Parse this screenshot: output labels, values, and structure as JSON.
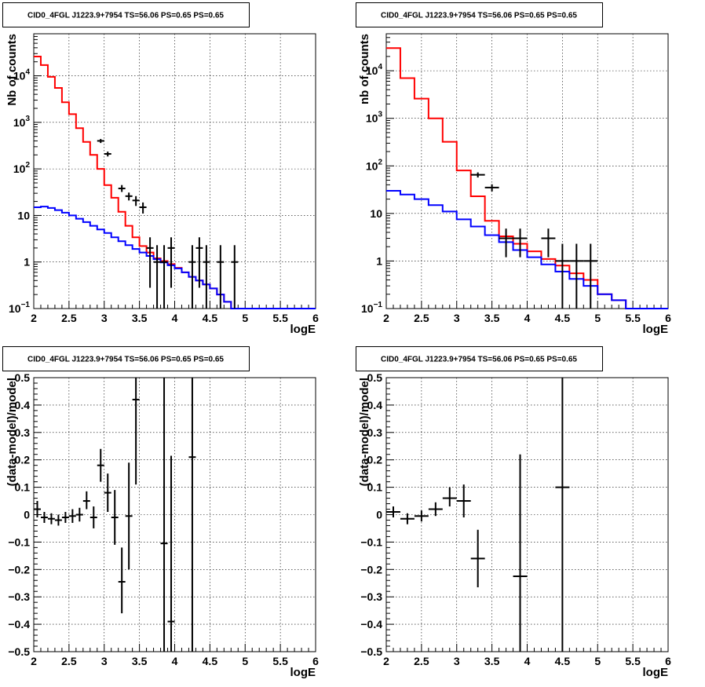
{
  "chart_data": [
    {
      "type": "line",
      "title": "CID0_4FGL J1223.9+7954 TS=56.06 PS=0.65 PS=0.65",
      "xlabel": "logE",
      "ylabel": "Nb of counts",
      "xlim": [
        2,
        6
      ],
      "ylim": [
        0.1,
        80000
      ],
      "yscale": "log",
      "grid": true,
      "xticks": [
        "2",
        "2.5",
        "3",
        "3.5",
        "4",
        "4.5",
        "5",
        "5.5",
        "6"
      ],
      "yticks": [
        {
          "v": 0.1,
          "base": "10",
          "exp": "−1"
        },
        {
          "v": 1,
          "label": "1"
        },
        {
          "v": 10,
          "label": "10"
        },
        {
          "v": 100,
          "base": "10",
          "exp": "2"
        },
        {
          "v": 1000,
          "base": "10",
          "exp": "3"
        },
        {
          "v": 10000,
          "base": "10",
          "exp": "4"
        }
      ],
      "bin_edges": [
        2.0,
        2.1,
        2.2,
        2.3,
        2.4,
        2.5,
        2.6,
        2.7,
        2.8,
        2.9,
        3.0,
        3.1,
        3.2,
        3.3,
        3.4,
        3.5,
        3.6,
        3.7,
        3.8,
        3.9,
        4.0,
        4.1,
        4.2,
        4.3,
        4.4,
        4.5,
        4.6,
        4.7,
        4.8,
        4.9,
        5.0,
        5.1,
        5.2,
        5.3,
        5.4,
        5.5,
        5.6,
        5.7,
        5.8,
        5.9,
        6.0
      ],
      "series": [
        {
          "color": "#ff0000",
          "style": "step",
          "values": [
            26000,
            17000,
            9500,
            5500,
            2700,
            1500,
            750,
            380,
            200,
            100,
            45,
            24,
            12,
            6.0,
            3.4,
            2.2,
            1.6,
            1.2,
            1.05,
            0.9,
            0.75,
            0.6,
            0.48,
            0.4,
            0.33,
            0.27,
            0.2,
            0.14,
            0.1,
            0.1,
            0.1,
            0.1,
            0.1,
            0.1,
            0.1,
            0.1,
            0.1,
            0.1,
            0.1,
            0.1
          ]
        },
        {
          "color": "#0000ff",
          "style": "step",
          "values": [
            15,
            15.5,
            14.5,
            13,
            11.5,
            10,
            8.5,
            7.2,
            6.0,
            5.0,
            4.2,
            3.4,
            2.8,
            2.3,
            1.9,
            1.6,
            1.35,
            1.15,
            0.98,
            0.85,
            0.73,
            0.6,
            0.48,
            0.4,
            0.33,
            0.27,
            0.2,
            0.14,
            0.1,
            0.1,
            0.1,
            0.1,
            0.1,
            0.1,
            0.1,
            0.1,
            0.1,
            0.1,
            0.1,
            0.1
          ]
        },
        {
          "color": "#000000",
          "style": "points",
          "points": [
            {
              "x": 2.95,
              "y": 400,
              "xerr": 0.05,
              "ylo": 360,
              "yhi": 440
            },
            {
              "x": 3.05,
              "y": 210,
              "xerr": 0.05,
              "ylo": 185,
              "yhi": 235
            },
            {
              "x": 3.25,
              "y": 38,
              "xerr": 0.05,
              "ylo": 32,
              "yhi": 45
            },
            {
              "x": 3.35,
              "y": 26,
              "xerr": 0.05,
              "ylo": 21,
              "yhi": 31
            },
            {
              "x": 3.45,
              "y": 21,
              "xerr": 0.05,
              "ylo": 16,
              "yhi": 26
            },
            {
              "x": 3.55,
              "y": 15,
              "xerr": 0.05,
              "ylo": 11,
              "yhi": 19
            },
            {
              "x": 3.65,
              "y": 2,
              "xerr": 0.05,
              "ylo": 0.28,
              "yhi": 3.4
            },
            {
              "x": 3.75,
              "y": 1,
              "xerr": 0.05,
              "ylo": 0.1,
              "yhi": 2.3
            },
            {
              "x": 3.85,
              "y": 1,
              "xerr": 0.05,
              "ylo": 0.1,
              "yhi": 2.3
            },
            {
              "x": 3.95,
              "y": 2,
              "xerr": 0.05,
              "ylo": 0.28,
              "yhi": 3.4
            },
            {
              "x": 4.25,
              "y": 1,
              "xerr": 0.05,
              "ylo": 0.1,
              "yhi": 2.3
            },
            {
              "x": 4.35,
              "y": 2,
              "xerr": 0.05,
              "ylo": 0.28,
              "yhi": 3.4
            },
            {
              "x": 4.45,
              "y": 1,
              "xerr": 0.05,
              "ylo": 0.1,
              "yhi": 2.3
            },
            {
              "x": 4.65,
              "y": 1,
              "xerr": 0.05,
              "ylo": 0.1,
              "yhi": 2.3
            },
            {
              "x": 4.85,
              "y": 1,
              "xerr": 0.05,
              "ylo": 0.1,
              "yhi": 2.3
            }
          ]
        }
      ]
    },
    {
      "type": "line",
      "title": "CID0_4FGL J1223.9+7954 TS=56.06 PS=0.65 PS=0.65",
      "xlabel": "logE",
      "ylabel": "nb of counts",
      "xlim": [
        2,
        6
      ],
      "ylim": [
        0.1,
        60000
      ],
      "yscale": "log",
      "grid": true,
      "xticks": [
        "2",
        "2.5",
        "3",
        "3.5",
        "4",
        "4.5",
        "5",
        "5.5",
        "6"
      ],
      "yticks": [
        {
          "v": 0.1,
          "base": "10",
          "exp": "−1"
        },
        {
          "v": 1,
          "label": "1"
        },
        {
          "v": 10,
          "label": "10"
        },
        {
          "v": 100,
          "base": "10",
          "exp": "2"
        },
        {
          "v": 1000,
          "base": "10",
          "exp": "3"
        },
        {
          "v": 10000,
          "base": "10",
          "exp": "4"
        }
      ],
      "bin_edges": [
        2.0,
        2.2,
        2.4,
        2.6,
        2.8,
        3.0,
        3.2,
        3.4,
        3.6,
        3.8,
        4.0,
        4.2,
        4.4,
        4.6,
        4.8,
        5.0,
        5.2,
        5.4,
        5.6,
        5.8,
        6.0
      ],
      "series": [
        {
          "color": "#ff0000",
          "style": "step",
          "values": [
            30000,
            7000,
            2600,
            1000,
            320,
            80,
            23,
            7.0,
            3.3,
            2.3,
            1.6,
            1.1,
            0.8,
            0.55,
            0.4,
            0.2,
            0.15,
            0.1,
            0.1,
            0.1
          ]
        },
        {
          "color": "#0000ff",
          "style": "step",
          "values": [
            30,
            25,
            20,
            15,
            11,
            7.5,
            5.3,
            3.5,
            2.5,
            1.7,
            1.2,
            0.85,
            0.6,
            0.42,
            0.3,
            0.2,
            0.15,
            0.1,
            0.1,
            0.1
          ]
        },
        {
          "color": "#000000",
          "style": "points",
          "points": [
            {
              "x": 3.3,
              "y": 65,
              "xerr": 0.1,
              "ylo": 57,
              "yhi": 73
            },
            {
              "x": 3.5,
              "y": 35,
              "xerr": 0.1,
              "ylo": 29,
              "yhi": 41
            },
            {
              "x": 3.7,
              "y": 3,
              "xerr": 0.1,
              "ylo": 1.2,
              "yhi": 4.8
            },
            {
              "x": 3.9,
              "y": 3,
              "xerr": 0.1,
              "ylo": 1.2,
              "yhi": 4.8
            },
            {
              "x": 4.3,
              "y": 3,
              "xerr": 0.1,
              "ylo": 1.2,
              "yhi": 4.8
            },
            {
              "x": 4.5,
              "y": 1,
              "xerr": 0.1,
              "ylo": 0.1,
              "yhi": 2.3
            },
            {
              "x": 4.7,
              "y": 1,
              "xerr": 0.1,
              "ylo": 0.1,
              "yhi": 2.3
            },
            {
              "x": 4.9,
              "y": 1,
              "xerr": 0.1,
              "ylo": 0.1,
              "yhi": 2.3
            }
          ]
        }
      ]
    },
    {
      "type": "scatter",
      "title": "CID0_4FGL J1223.9+7954 TS=56.06 PS=0.65 PS=0.65",
      "xlabel": "logE",
      "ylabel": "(data-model)/model",
      "xlim": [
        2,
        6
      ],
      "ylim": [
        -0.5,
        0.5
      ],
      "yscale": "linear",
      "grid": true,
      "xticks": [
        "2",
        "2.5",
        "3",
        "3.5",
        "4",
        "4.5",
        "5",
        "5.5",
        "6"
      ],
      "yticks": [
        {
          "v": -0.5,
          "label": "−0.5"
        },
        {
          "v": -0.4,
          "label": "−0.4"
        },
        {
          "v": -0.3,
          "label": "−0.3"
        },
        {
          "v": -0.2,
          "label": "−0.2"
        },
        {
          "v": -0.1,
          "label": "−0.1"
        },
        {
          "v": 0,
          "label": "0"
        },
        {
          "v": 0.1,
          "label": "0.1"
        },
        {
          "v": 0.2,
          "label": "0.2"
        },
        {
          "v": 0.3,
          "label": "0.3"
        },
        {
          "v": 0.4,
          "label": "0.4"
        },
        {
          "v": 0.5,
          "label": "0.5"
        }
      ],
      "series": [
        {
          "color": "#000000",
          "style": "points",
          "points": [
            {
              "x": 2.05,
              "y": 0.02,
              "xerr": 0.05,
              "ylo": -0.01,
              "yhi": 0.05
            },
            {
              "x": 2.15,
              "y": -0.01,
              "xerr": 0.05,
              "ylo": -0.03,
              "yhi": 0.01
            },
            {
              "x": 2.25,
              "y": -0.015,
              "xerr": 0.05,
              "ylo": -0.035,
              "yhi": 0.005
            },
            {
              "x": 2.35,
              "y": -0.02,
              "xerr": 0.05,
              "ylo": -0.04,
              "yhi": 0.0
            },
            {
              "x": 2.45,
              "y": -0.01,
              "xerr": 0.05,
              "ylo": -0.03,
              "yhi": 0.01
            },
            {
              "x": 2.55,
              "y": -0.005,
              "xerr": 0.05,
              "ylo": -0.03,
              "yhi": 0.02
            },
            {
              "x": 2.65,
              "y": 0.0,
              "xerr": 0.05,
              "ylo": -0.025,
              "yhi": 0.025
            },
            {
              "x": 2.75,
              "y": 0.05,
              "xerr": 0.05,
              "ylo": 0.02,
              "yhi": 0.085
            },
            {
              "x": 2.85,
              "y": -0.01,
              "xerr": 0.05,
              "ylo": -0.05,
              "yhi": 0.03
            },
            {
              "x": 2.95,
              "y": 0.18,
              "xerr": 0.05,
              "ylo": 0.12,
              "yhi": 0.24
            },
            {
              "x": 3.05,
              "y": 0.08,
              "xerr": 0.05,
              "ylo": 0.01,
              "yhi": 0.15
            },
            {
              "x": 3.15,
              "y": -0.01,
              "xerr": 0.05,
              "ylo": -0.11,
              "yhi": 0.09
            },
            {
              "x": 3.25,
              "y": -0.245,
              "xerr": 0.05,
              "ylo": -0.36,
              "yhi": -0.12
            },
            {
              "x": 3.35,
              "y": -0.005,
              "xerr": 0.05,
              "ylo": -0.2,
              "yhi": 0.19
            },
            {
              "x": 3.45,
              "y": 0.42,
              "xerr": 0.05,
              "ylo": 0.11,
              "yhi": 0.5
            },
            {
              "x": 3.85,
              "y": -0.105,
              "xerr": 0.05,
              "ylo": -0.5,
              "yhi": 0.5
            },
            {
              "x": 3.95,
              "y": -0.39,
              "xerr": 0.05,
              "ylo": -0.5,
              "yhi": 0.215
            },
            {
              "x": 4.25,
              "y": 0.21,
              "xerr": 0.05,
              "ylo": -0.5,
              "yhi": 0.5
            }
          ]
        }
      ]
    },
    {
      "type": "scatter",
      "title": "CID0_4FGL J1223.9+7954 TS=56.06 PS=0.65 PS=0.65",
      "xlabel": "logE",
      "ylabel": "(data-model)/model",
      "xlim": [
        2,
        6
      ],
      "ylim": [
        -0.5,
        0.5
      ],
      "yscale": "linear",
      "grid": true,
      "xticks": [
        "2",
        "2.5",
        "3",
        "3.5",
        "4",
        "4.5",
        "5",
        "5.5",
        "6"
      ],
      "yticks": [
        {
          "v": -0.5,
          "label": "−0.5"
        },
        {
          "v": -0.4,
          "label": "−0.4"
        },
        {
          "v": -0.3,
          "label": "−0.3"
        },
        {
          "v": -0.2,
          "label": "−0.2"
        },
        {
          "v": -0.1,
          "label": "−0.1"
        },
        {
          "v": 0,
          "label": "0"
        },
        {
          "v": 0.1,
          "label": "0.1"
        },
        {
          "v": 0.2,
          "label": "0.2"
        },
        {
          "v": 0.3,
          "label": "0.3"
        },
        {
          "v": 0.4,
          "label": "0.4"
        },
        {
          "v": 0.5,
          "label": "0.5"
        }
      ],
      "series": [
        {
          "color": "#000000",
          "style": "points",
          "points": [
            {
              "x": 2.1,
              "y": 0.01,
              "xerr": 0.1,
              "ylo": -0.01,
              "yhi": 0.03
            },
            {
              "x": 2.3,
              "y": -0.015,
              "xerr": 0.1,
              "ylo": -0.035,
              "yhi": 0.005
            },
            {
              "x": 2.5,
              "y": -0.005,
              "xerr": 0.1,
              "ylo": -0.025,
              "yhi": 0.015
            },
            {
              "x": 2.7,
              "y": 0.02,
              "xerr": 0.1,
              "ylo": -0.005,
              "yhi": 0.045
            },
            {
              "x": 2.9,
              "y": 0.06,
              "xerr": 0.1,
              "ylo": 0.03,
              "yhi": 0.1
            },
            {
              "x": 3.1,
              "y": 0.05,
              "xerr": 0.1,
              "ylo": -0.01,
              "yhi": 0.11
            },
            {
              "x": 3.3,
              "y": -0.16,
              "xerr": 0.1,
              "ylo": -0.265,
              "yhi": -0.055
            },
            {
              "x": 3.9,
              "y": -0.225,
              "xerr": 0.1,
              "ylo": -0.5,
              "yhi": 0.22
            },
            {
              "x": 4.5,
              "y": 0.1,
              "xerr": 0.1,
              "ylo": -0.5,
              "yhi": 0.5
            }
          ]
        }
      ]
    }
  ]
}
